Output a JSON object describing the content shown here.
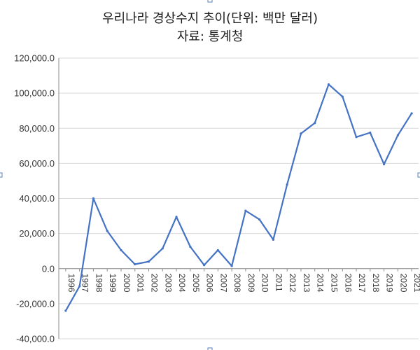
{
  "chart_data": {
    "type": "line",
    "title": "우리나라 경상수지 추이(단위: 백만 달러)",
    "subtitle": "자료: 통계청",
    "x": [
      "1996",
      "1997",
      "1998",
      "1999",
      "2000",
      "2001",
      "2002",
      "2003",
      "2004",
      "2005",
      "2006",
      "2007",
      "2008",
      "2009",
      "2010",
      "2011",
      "2012",
      "2013",
      "2014",
      "2015",
      "2016",
      "2017",
      "2018",
      "2019",
      "2020",
      "2021"
    ],
    "series": [
      {
        "values": [
          -24000,
          -10000,
          40000,
          21500,
          10500,
          2500,
          4000,
          11500,
          29500,
          12500,
          2000,
          10500,
          1500,
          33000,
          28000,
          16500,
          48000,
          77000,
          83000,
          105000,
          98000,
          75000,
          77500,
          59500,
          76000,
          88500
        ]
      }
    ],
    "ylim": [
      -40000,
      120000
    ],
    "yticks": [
      "120,000.0",
      "100,000.0",
      "80,000.0",
      "60,000.0",
      "40,000.0",
      "20,000.0",
      "0.0",
      "-20,000.0",
      "-40,000.0"
    ],
    "grid": true,
    "colors": {
      "series": "#4472c4",
      "handle": "#5a7fb8",
      "gridline": "#d9d9d9"
    }
  }
}
